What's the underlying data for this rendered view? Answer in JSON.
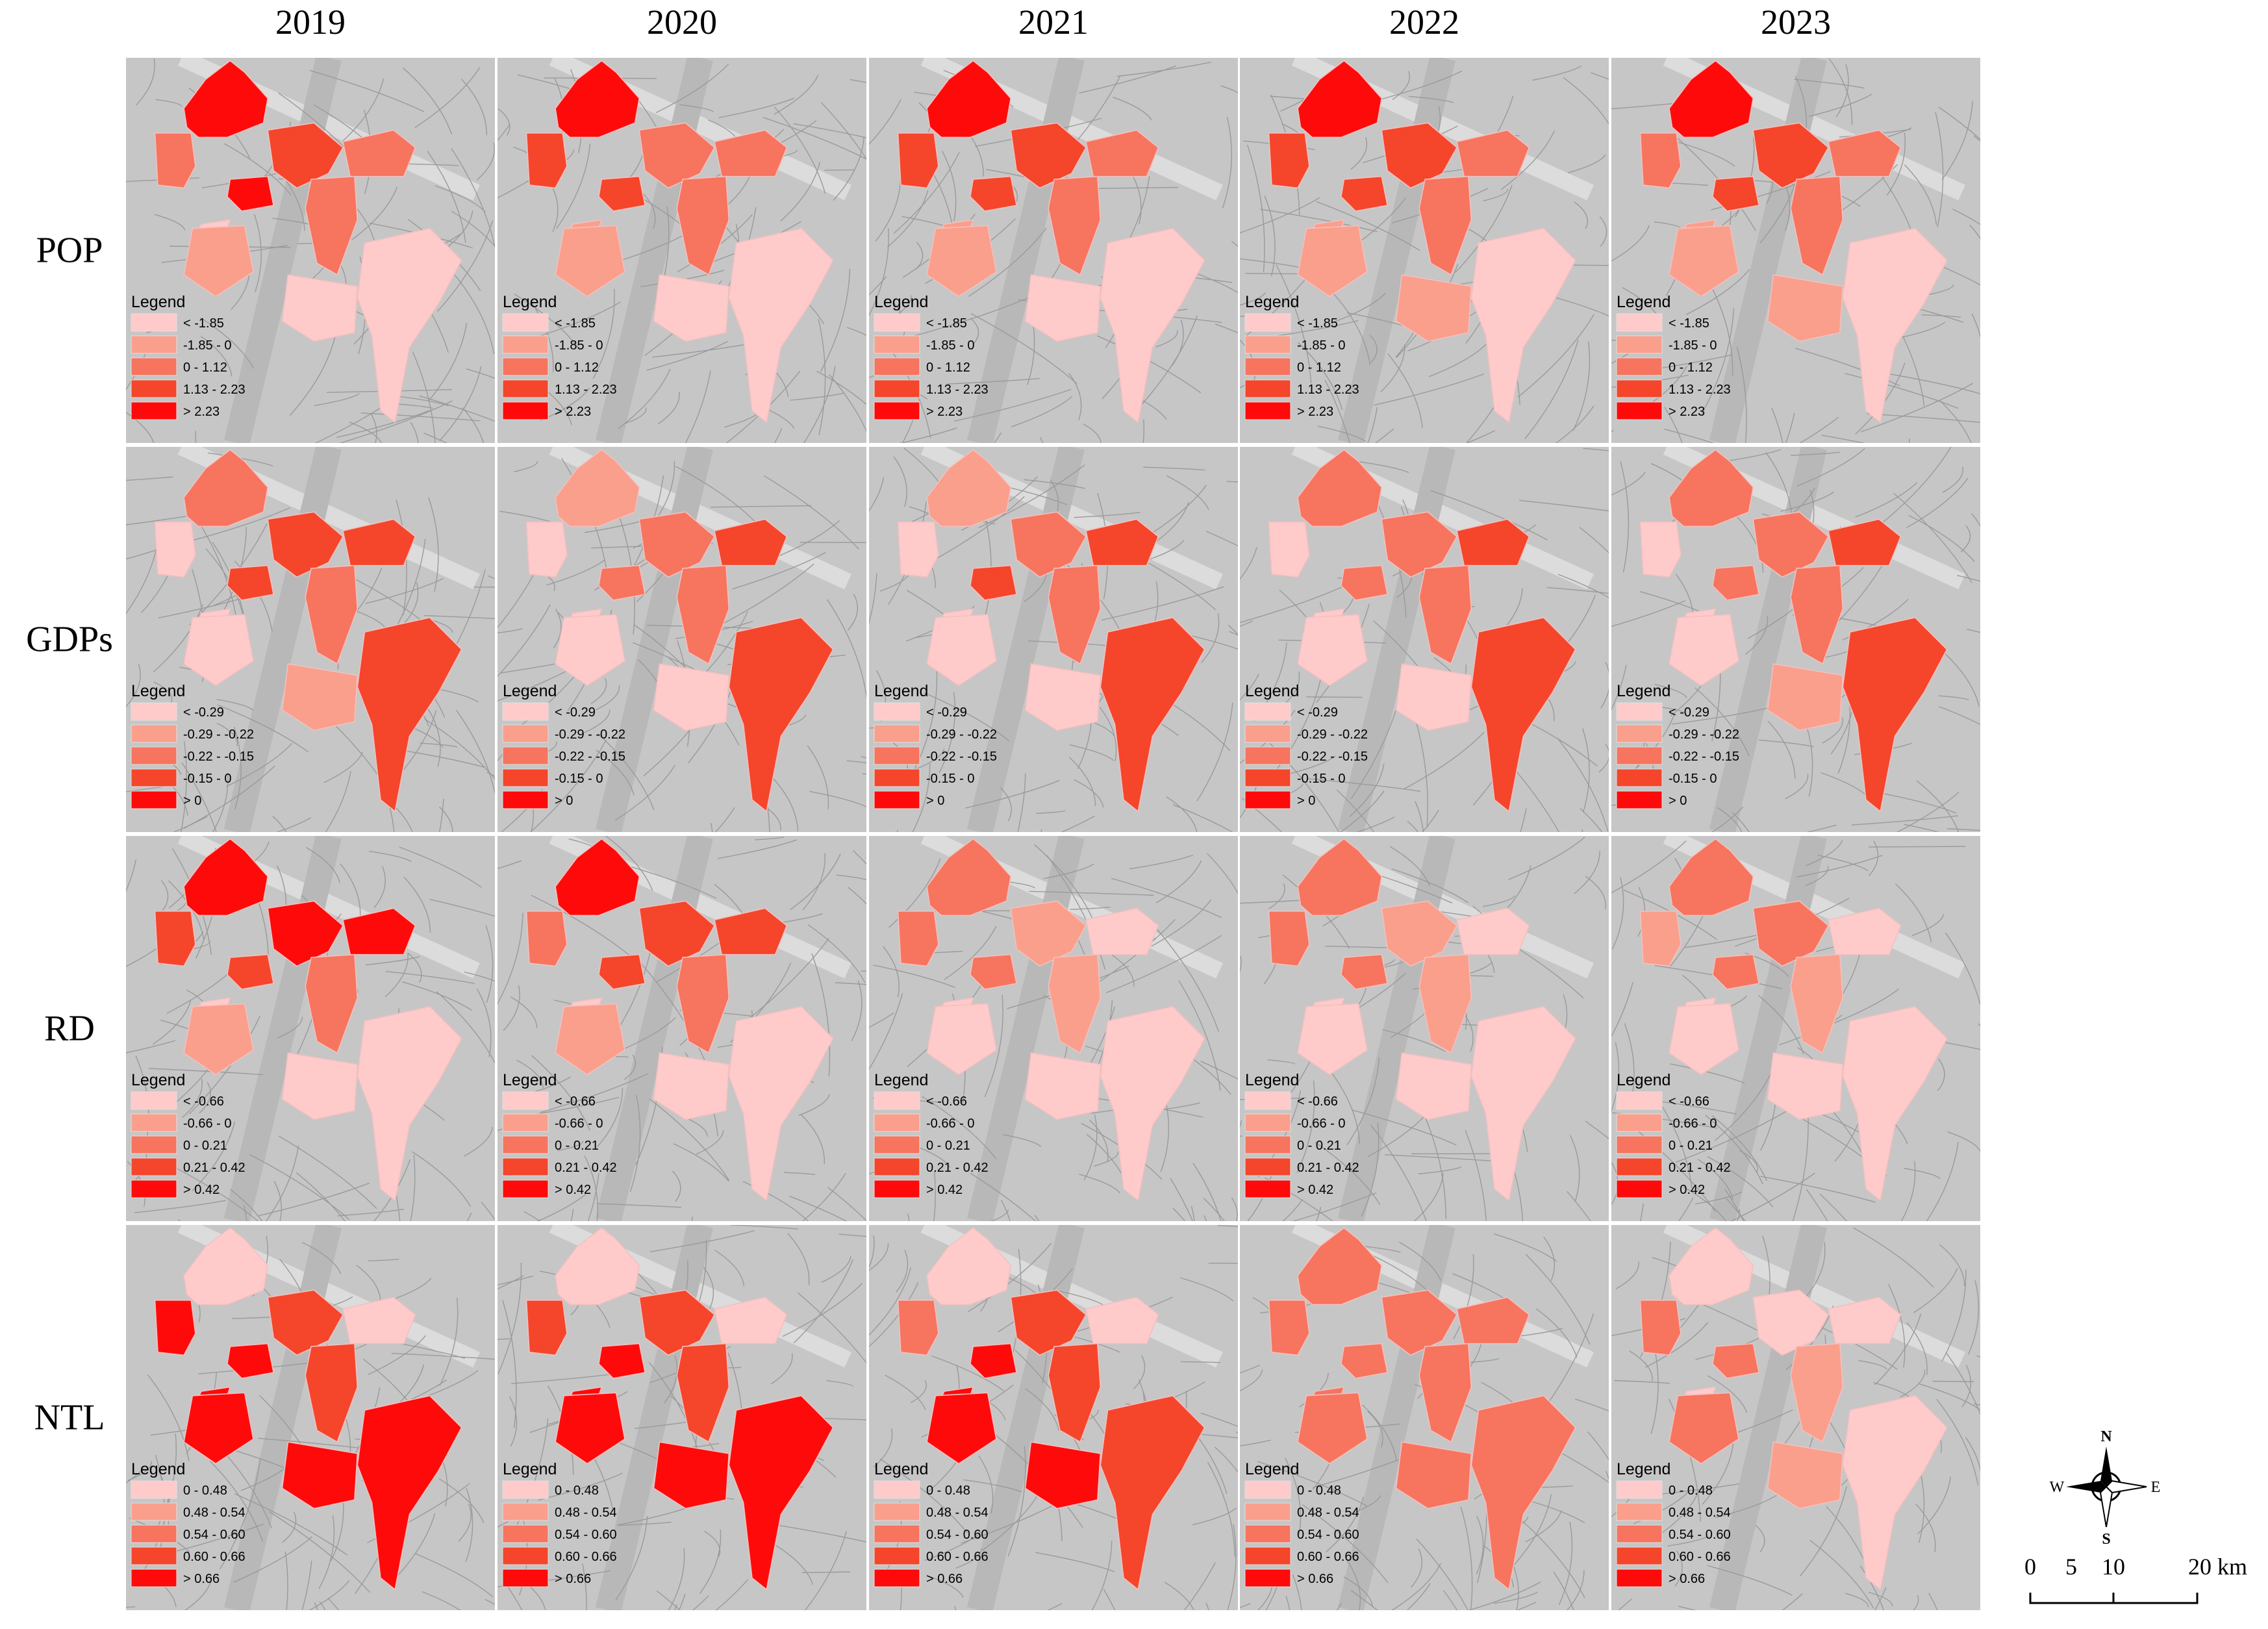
{
  "years": [
    "2019",
    "2020",
    "2021",
    "2022",
    "2023"
  ],
  "class_colors": [
    "#ffcaca",
    "#fa9f8c",
    "#f7745e",
    "#f5452b",
    "#ff0a0a"
  ],
  "rows": [
    {
      "label": "POP",
      "legend_title": "Legend",
      "classes": [
        "< -1.85",
        "-1.85 - 0",
        "0 - 1.12",
        "1.13 - 2.23",
        "> 2.23"
      ],
      "districts": [
        [
          4,
          2,
          0,
          3,
          2,
          2,
          1,
          0,
          0,
          4
        ],
        [
          4,
          3,
          1,
          2,
          2,
          2,
          1,
          0,
          0,
          3
        ],
        [
          4,
          3,
          1,
          3,
          2,
          2,
          1,
          0,
          0,
          3
        ],
        [
          4,
          3,
          1,
          3,
          2,
          2,
          1,
          1,
          0,
          3
        ],
        [
          4,
          2,
          1,
          3,
          2,
          2,
          1,
          1,
          0,
          3
        ]
      ]
    },
    {
      "label": "GDPs",
      "legend_title": "Legend",
      "classes": [
        "< -0.29",
        "-0.29 - -0.22",
        "-0.22 - -0.15",
        "-0.15 - 0",
        "> 0"
      ],
      "districts": [
        [
          2,
          0,
          0,
          3,
          3,
          2,
          0,
          1,
          3,
          3
        ],
        [
          1,
          0,
          0,
          2,
          3,
          2,
          0,
          0,
          3,
          2
        ],
        [
          1,
          0,
          0,
          2,
          3,
          2,
          0,
          0,
          3,
          3
        ],
        [
          2,
          0,
          0,
          2,
          3,
          2,
          0,
          0,
          3,
          2
        ],
        [
          2,
          0,
          0,
          2,
          3,
          2,
          0,
          1,
          3,
          2
        ]
      ]
    },
    {
      "label": "RD",
      "legend_title": "Legend",
      "classes": [
        "< -0.66",
        "-0.66 - 0",
        "0 - 0.21",
        "0.21 - 0.42",
        "> 0.42"
      ],
      "districts": [
        [
          4,
          3,
          0,
          4,
          4,
          2,
          1,
          0,
          0,
          3
        ],
        [
          4,
          2,
          0,
          3,
          3,
          2,
          1,
          0,
          0,
          3
        ],
        [
          2,
          2,
          0,
          1,
          0,
          1,
          0,
          0,
          0,
          2
        ],
        [
          2,
          2,
          0,
          1,
          0,
          1,
          0,
          0,
          0,
          2
        ],
        [
          2,
          1,
          0,
          2,
          0,
          1,
          0,
          0,
          0,
          2
        ]
      ]
    },
    {
      "label": "NTL",
      "legend_title": "Legend",
      "classes": [
        "0 - 0.48",
        "0.48 - 0.54",
        "0.54 - 0.60",
        "0.60 - 0.66",
        "> 0.66"
      ],
      "districts": [
        [
          0,
          4,
          4,
          3,
          0,
          3,
          4,
          4,
          4,
          4
        ],
        [
          0,
          3,
          4,
          3,
          0,
          3,
          4,
          4,
          4,
          4
        ],
        [
          0,
          2,
          4,
          3,
          0,
          3,
          4,
          4,
          3,
          4
        ],
        [
          2,
          2,
          2,
          2,
          2,
          2,
          2,
          2,
          2,
          2
        ],
        [
          0,
          2,
          0,
          0,
          0,
          1,
          2,
          1,
          0,
          2
        ]
      ]
    }
  ],
  "compass": {
    "north": "N",
    "east": "E",
    "south": "S",
    "west": "W"
  },
  "scale_bar": [
    "0",
    "5",
    "10",
    "20 km"
  ]
}
